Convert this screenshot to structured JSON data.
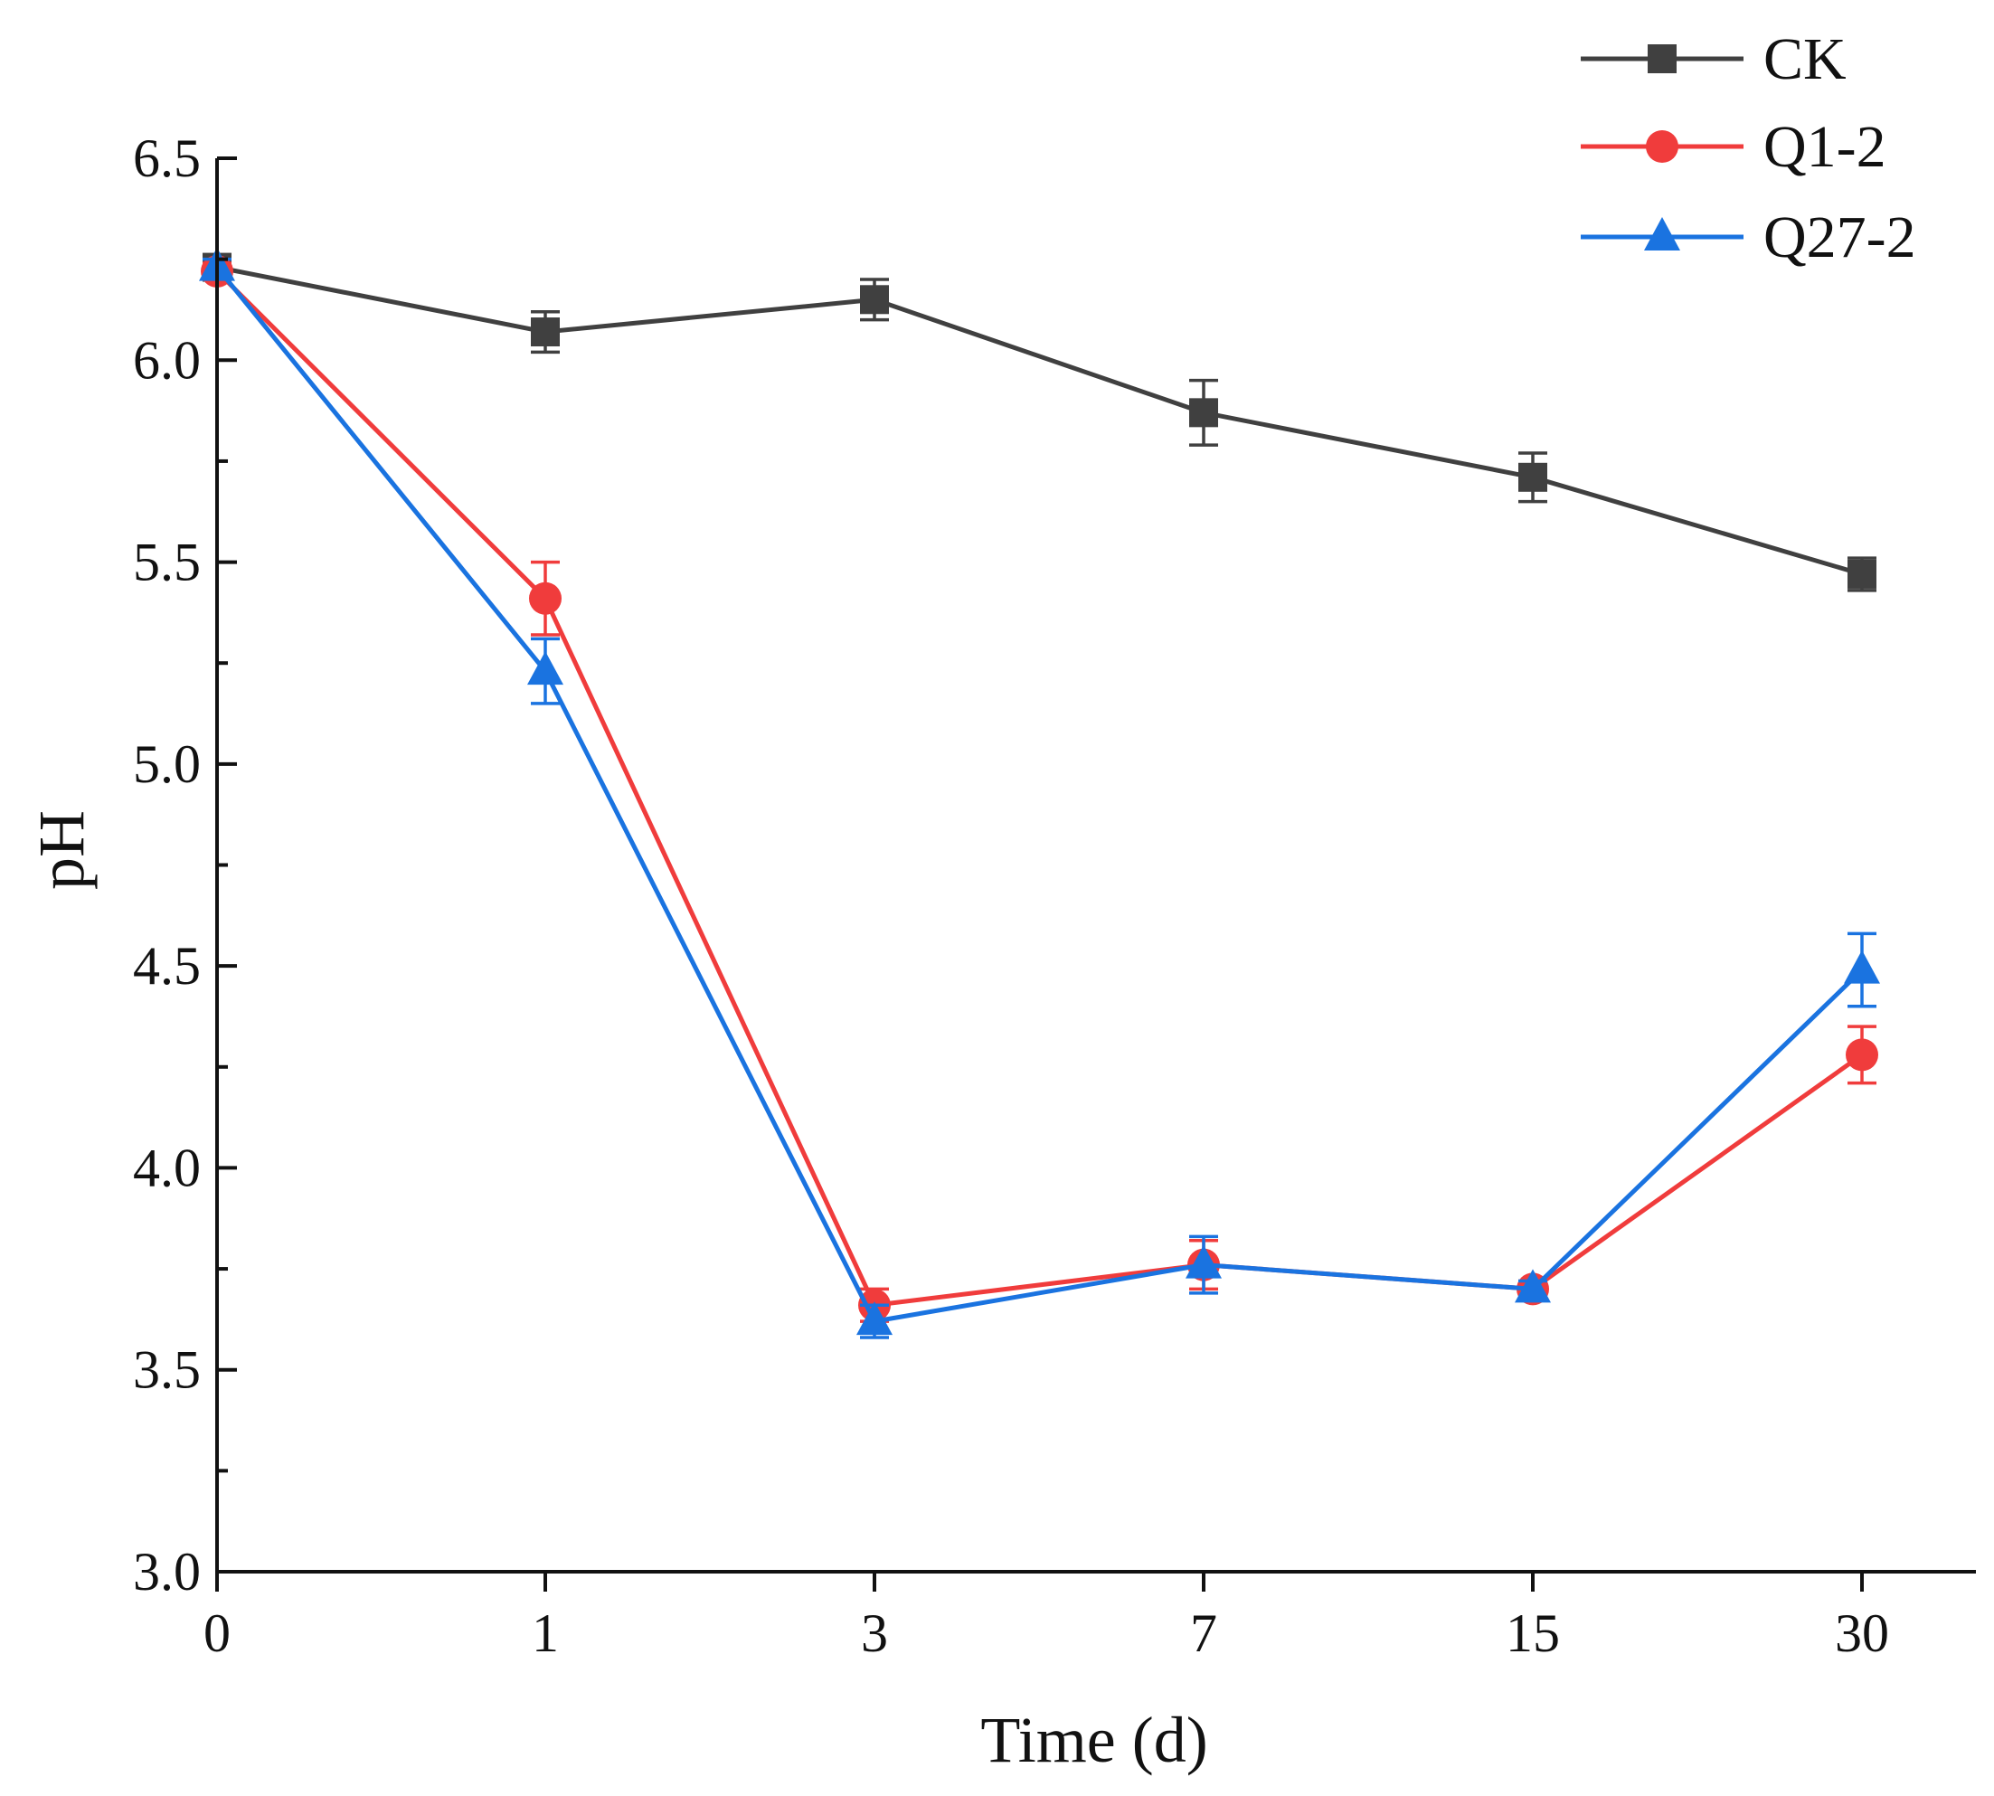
{
  "chart_data": {
    "type": "line",
    "title": "",
    "xlabel": "Time (d)",
    "ylabel": "pH",
    "categories": [
      "0",
      "1",
      "3",
      "7",
      "15",
      "30"
    ],
    "ylim": [
      3.0,
      6.5
    ],
    "yticks": [
      "3.0",
      "3.5",
      "4.0",
      "4.5",
      "5.0",
      "5.5",
      "6.0",
      "6.5"
    ],
    "ytick_values": [
      3.0,
      3.5,
      4.0,
      4.5,
      5.0,
      5.5,
      6.0,
      6.5
    ],
    "grid": false,
    "legend_position": "top-right",
    "series": [
      {
        "name": "CK",
        "color": "#404040",
        "marker": "square",
        "values": [
          6.23,
          6.07,
          6.15,
          5.87,
          5.71,
          5.47
        ],
        "errors": [
          0.02,
          0.05,
          0.05,
          0.08,
          0.06,
          0.04
        ]
      },
      {
        "name": "Q1-2",
        "color": "#f03c3c",
        "marker": "circle",
        "values": [
          6.22,
          5.41,
          3.66,
          3.76,
          3.7,
          4.28
        ],
        "errors": [
          0.02,
          0.09,
          0.04,
          0.06,
          0.02,
          0.07
        ]
      },
      {
        "name": "Q27-2",
        "color": "#1a73e0",
        "marker": "triangle",
        "values": [
          6.23,
          5.23,
          3.62,
          3.76,
          3.7,
          4.49
        ],
        "errors": [
          0.02,
          0.08,
          0.04,
          0.07,
          0.02,
          0.09
        ]
      }
    ]
  }
}
